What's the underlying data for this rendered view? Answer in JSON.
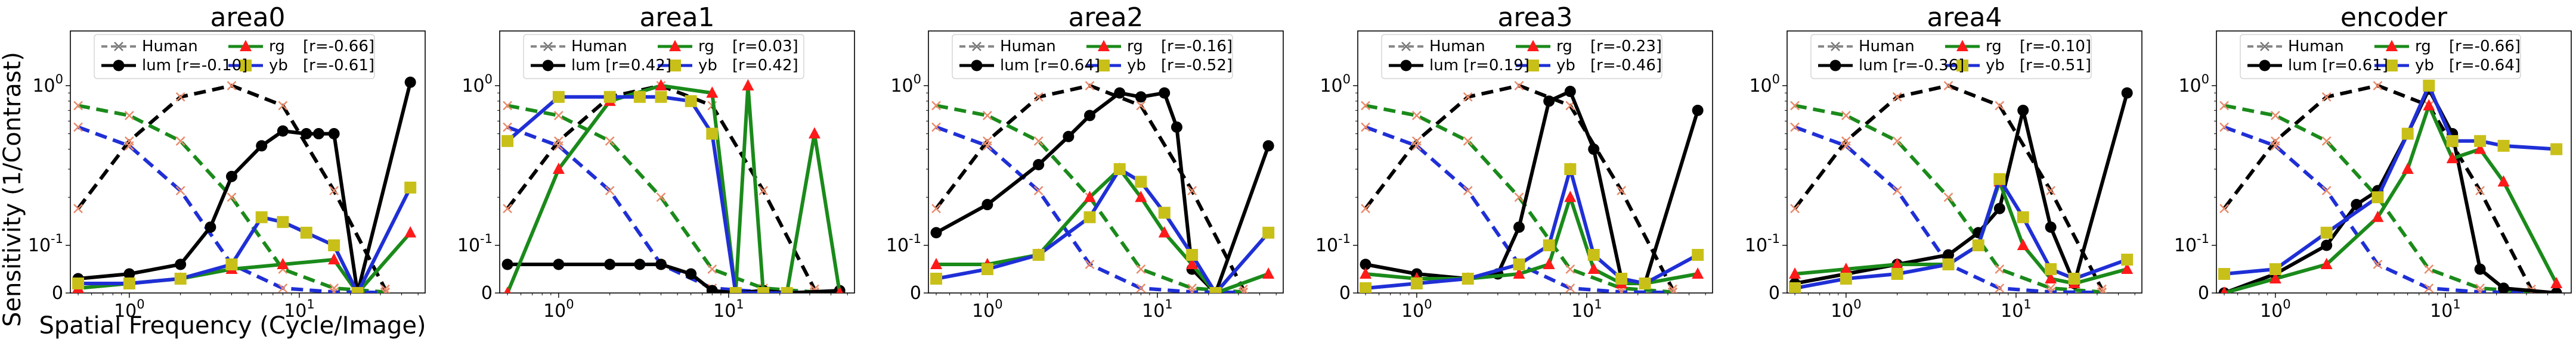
{
  "figure": {
    "ylabel": "Sensitivity (1/Contrast)",
    "xlabel": "Spatial Frequency (Cycle/Image)"
  },
  "style": {
    "lum": "#000000",
    "rg": "#1a8a1a",
    "yb": "#1f2fd6",
    "human": "#000000",
    "rg_marker": "#ff1a1a",
    "yb_marker": "#c8c018"
  },
  "chart_data": [
    {
      "type": "line",
      "title": "area0",
      "xscale": "log",
      "yscale": "symlog",
      "xlim": [
        0.45,
        55
      ],
      "ylim": [
        0,
        2.2
      ],
      "yticks": [
        "0",
        "10^-1",
        "10^0"
      ],
      "xticks": [
        "10^0",
        "10^1"
      ],
      "legend": {
        "position": "top",
        "entries": [
          "Human",
          "lum [r=-0.10]",
          "rg",
          "[r=-0.66]",
          "yb",
          "[r=-0.61]"
        ]
      },
      "human": {
        "lum": {
          "x": [
            0.5,
            1,
            2,
            4,
            8,
            16,
            32
          ],
          "y": [
            0.17,
            0.45,
            0.85,
            1.0,
            0.75,
            0.22,
            0.008
          ]
        },
        "rg": {
          "x": [
            0.5,
            1,
            2,
            4,
            8,
            16,
            32
          ],
          "y": [
            0.75,
            0.65,
            0.45,
            0.2,
            0.05,
            0.01,
            0.002
          ]
        },
        "yb": {
          "x": [
            0.5,
            1,
            2,
            4,
            8,
            16,
            32
          ],
          "y": [
            0.55,
            0.42,
            0.22,
            0.06,
            0.01,
            0.002,
            0.001
          ]
        }
      },
      "series": [
        {
          "name": "lum",
          "x": [
            0.5,
            1,
            2,
            3,
            4,
            6,
            8,
            11,
            13,
            16,
            22,
            45
          ],
          "y": [
            0.03,
            0.04,
            0.06,
            0.13,
            0.27,
            0.42,
            0.52,
            0.5,
            0.5,
            0.5,
            0.0,
            1.05
          ]
        },
        {
          "name": "rg",
          "x": [
            0.5,
            1,
            2,
            4,
            8,
            16,
            22,
            45
          ],
          "y": [
            0.01,
            0.02,
            0.03,
            0.05,
            0.06,
            0.07,
            0.0,
            0.12
          ]
        },
        {
          "name": "yb",
          "x": [
            0.5,
            1,
            2,
            4,
            6,
            8,
            11,
            16,
            22,
            45
          ],
          "y": [
            0.02,
            0.02,
            0.03,
            0.06,
            0.15,
            0.14,
            0.12,
            0.1,
            0.0,
            0.23
          ]
        }
      ]
    },
    {
      "type": "line",
      "title": "area1",
      "xscale": "log",
      "yscale": "symlog",
      "xlim": [
        0.45,
        55
      ],
      "ylim": [
        0,
        2.2
      ],
      "yticks": [
        "0",
        "10^-1",
        "10^0"
      ],
      "xticks": [
        "10^0",
        "10^1"
      ],
      "legend": {
        "position": "top",
        "entries": [
          "Human",
          "lum [r=0.42]",
          "rg",
          "[r=0.03]",
          "yb",
          "[r=0.42]"
        ]
      },
      "human": {
        "lum": {
          "x": [
            0.5,
            1,
            2,
            4,
            8,
            16,
            32
          ],
          "y": [
            0.17,
            0.45,
            0.85,
            1.0,
            0.75,
            0.22,
            0.008
          ]
        },
        "rg": {
          "x": [
            0.5,
            1,
            2,
            4,
            8,
            16,
            32
          ],
          "y": [
            0.75,
            0.65,
            0.45,
            0.2,
            0.05,
            0.01,
            0.002
          ]
        },
        "yb": {
          "x": [
            0.5,
            1,
            2,
            4,
            8,
            16,
            32
          ],
          "y": [
            0.55,
            0.42,
            0.22,
            0.06,
            0.01,
            0.002,
            0.001
          ]
        }
      },
      "series": [
        {
          "name": "lum",
          "x": [
            0.5,
            1,
            2,
            3,
            4,
            6,
            8,
            11,
            16,
            22,
            45
          ],
          "y": [
            0.06,
            0.06,
            0.06,
            0.06,
            0.06,
            0.04,
            0.005,
            0.0,
            0.005,
            0.0,
            0.005
          ]
        },
        {
          "name": "rg",
          "x": [
            0.5,
            1,
            2,
            4,
            8,
            11,
            13,
            16,
            22,
            32,
            45
          ],
          "y": [
            0.0,
            0.3,
            0.8,
            1.0,
            0.9,
            0.0,
            1.0,
            0.0,
            0.0,
            0.5,
            0.0
          ]
        },
        {
          "name": "yb",
          "x": [
            0.5,
            1,
            2,
            3,
            4,
            6,
            8,
            11,
            16,
            22
          ],
          "y": [
            0.45,
            0.85,
            0.85,
            0.85,
            0.85,
            0.8,
            0.5,
            0.0,
            0.0,
            0.0
          ]
        }
      ]
    },
    {
      "type": "line",
      "title": "area2",
      "xscale": "log",
      "yscale": "symlog",
      "xlim": [
        0.45,
        55
      ],
      "ylim": [
        0,
        2.2
      ],
      "yticks": [
        "0",
        "10^-1",
        "10^0"
      ],
      "xticks": [
        "10^0",
        "10^1"
      ],
      "legend": {
        "position": "top",
        "entries": [
          "Human",
          "lum [r=0.64]",
          "rg",
          "[r=-0.16]",
          "yb",
          "[r=-0.52]"
        ]
      },
      "human": {
        "lum": {
          "x": [
            0.5,
            1,
            2,
            4,
            8,
            16,
            32
          ],
          "y": [
            0.17,
            0.45,
            0.85,
            1.0,
            0.75,
            0.22,
            0.008
          ]
        },
        "rg": {
          "x": [
            0.5,
            1,
            2,
            4,
            8,
            16,
            32
          ],
          "y": [
            0.75,
            0.65,
            0.45,
            0.2,
            0.05,
            0.01,
            0.002
          ]
        },
        "yb": {
          "x": [
            0.5,
            1,
            2,
            4,
            8,
            16,
            32
          ],
          "y": [
            0.55,
            0.42,
            0.22,
            0.06,
            0.01,
            0.002,
            0.001
          ]
        }
      },
      "series": [
        {
          "name": "lum",
          "x": [
            0.5,
            1,
            2,
            3,
            4,
            6,
            8,
            11,
            13,
            16,
            22,
            45
          ],
          "y": [
            0.12,
            0.18,
            0.32,
            0.48,
            0.65,
            0.9,
            0.85,
            0.9,
            0.55,
            0.05,
            0.0,
            0.42
          ]
        },
        {
          "name": "rg",
          "x": [
            0.5,
            1,
            2,
            4,
            6,
            8,
            11,
            16,
            22,
            45
          ],
          "y": [
            0.06,
            0.06,
            0.08,
            0.2,
            0.3,
            0.2,
            0.12,
            0.06,
            0.0,
            0.04
          ]
        },
        {
          "name": "yb",
          "x": [
            0.5,
            1,
            2,
            4,
            6,
            8,
            11,
            16,
            22,
            45
          ],
          "y": [
            0.03,
            0.05,
            0.08,
            0.15,
            0.3,
            0.25,
            0.16,
            0.08,
            0.0,
            0.12
          ]
        }
      ]
    },
    {
      "type": "line",
      "title": "area3",
      "xscale": "log",
      "yscale": "symlog",
      "xlim": [
        0.45,
        55
      ],
      "ylim": [
        0,
        2.2
      ],
      "yticks": [
        "0",
        "10^-1",
        "10^0"
      ],
      "xticks": [
        "10^0",
        "10^1"
      ],
      "legend": {
        "position": "top",
        "entries": [
          "Human",
          "lum [r=0.19]",
          "rg",
          "[r=-0.23]",
          "yb",
          "[r=-0.46]"
        ]
      },
      "human": {
        "lum": {
          "x": [
            0.5,
            1,
            2,
            4,
            8,
            16,
            32
          ],
          "y": [
            0.17,
            0.45,
            0.85,
            1.0,
            0.75,
            0.22,
            0.008
          ]
        },
        "rg": {
          "x": [
            0.5,
            1,
            2,
            4,
            8,
            16,
            32
          ],
          "y": [
            0.75,
            0.65,
            0.45,
            0.2,
            0.05,
            0.01,
            0.002
          ]
        },
        "yb": {
          "x": [
            0.5,
            1,
            2,
            4,
            8,
            16,
            32
          ],
          "y": [
            0.55,
            0.42,
            0.22,
            0.06,
            0.01,
            0.002,
            0.001
          ]
        }
      },
      "series": [
        {
          "name": "lum",
          "x": [
            0.5,
            1,
            2,
            3,
            4,
            6,
            8,
            11,
            16,
            22,
            45
          ],
          "y": [
            0.06,
            0.04,
            0.03,
            0.04,
            0.13,
            0.8,
            0.92,
            0.4,
            0.03,
            0.02,
            0.7
          ]
        },
        {
          "name": "rg",
          "x": [
            0.5,
            1,
            2,
            4,
            6,
            8,
            11,
            16,
            22,
            45
          ],
          "y": [
            0.04,
            0.03,
            0.03,
            0.04,
            0.06,
            0.2,
            0.05,
            0.02,
            0.02,
            0.04
          ]
        },
        {
          "name": "yb",
          "x": [
            0.5,
            1,
            2,
            4,
            6,
            8,
            11,
            16,
            22,
            45
          ],
          "y": [
            0.01,
            0.02,
            0.03,
            0.06,
            0.1,
            0.3,
            0.08,
            0.03,
            0.02,
            0.08
          ]
        }
      ]
    },
    {
      "type": "line",
      "title": "area4",
      "xscale": "log",
      "yscale": "symlog",
      "xlim": [
        0.45,
        55
      ],
      "ylim": [
        0,
        2.2
      ],
      "yticks": [
        "0",
        "10^-1",
        "10^0"
      ],
      "xticks": [
        "10^0",
        "10^1"
      ],
      "legend": {
        "position": "top",
        "entries": [
          "Human",
          "lum [r=-0.36]",
          "rg",
          "[r=-0.10]",
          "yb",
          "[r=-0.51]"
        ]
      },
      "human": {
        "lum": {
          "x": [
            0.5,
            1,
            2,
            4,
            8,
            16,
            32
          ],
          "y": [
            0.17,
            0.45,
            0.85,
            1.0,
            0.75,
            0.22,
            0.008
          ]
        },
        "rg": {
          "x": [
            0.5,
            1,
            2,
            4,
            8,
            16,
            32
          ],
          "y": [
            0.75,
            0.65,
            0.45,
            0.2,
            0.05,
            0.01,
            0.002
          ]
        },
        "yb": {
          "x": [
            0.5,
            1,
            2,
            4,
            8,
            16,
            32
          ],
          "y": [
            0.55,
            0.42,
            0.22,
            0.06,
            0.01,
            0.002,
            0.001
          ]
        }
      },
      "series": [
        {
          "name": "lum",
          "x": [
            0.5,
            1,
            2,
            4,
            6,
            8,
            11,
            16,
            22,
            45
          ],
          "y": [
            0.02,
            0.04,
            0.06,
            0.08,
            0.12,
            0.17,
            0.7,
            0.13,
            0.02,
            0.9
          ]
        },
        {
          "name": "rg",
          "x": [
            0.5,
            1,
            2,
            4,
            6,
            8,
            11,
            16,
            22,
            45
          ],
          "y": [
            0.04,
            0.05,
            0.06,
            0.06,
            0.1,
            0.25,
            0.1,
            0.03,
            0.02,
            0.05
          ]
        },
        {
          "name": "yb",
          "x": [
            0.5,
            1,
            2,
            4,
            6,
            8,
            11,
            16,
            22,
            45
          ],
          "y": [
            0.01,
            0.03,
            0.04,
            0.06,
            0.1,
            0.26,
            0.15,
            0.05,
            0.03,
            0.07
          ]
        }
      ]
    },
    {
      "type": "line",
      "title": "encoder",
      "xscale": "log",
      "yscale": "symlog",
      "xlim": [
        0.45,
        55
      ],
      "ylim": [
        0,
        2.2
      ],
      "yticks": [
        "0",
        "10^-1",
        "10^0"
      ],
      "xticks": [
        "10^0",
        "10^1"
      ],
      "legend": {
        "position": "top",
        "entries": [
          "Human",
          "lum [r=0.61]",
          "rg",
          "[r=-0.66]",
          "yb",
          "[r=-0.64]"
        ]
      },
      "human": {
        "lum": {
          "x": [
            0.5,
            1,
            2,
            4,
            8,
            16,
            32
          ],
          "y": [
            0.17,
            0.45,
            0.85,
            1.0,
            0.75,
            0.22,
            0.008
          ]
        },
        "rg": {
          "x": [
            0.5,
            1,
            2,
            4,
            8,
            16,
            32
          ],
          "y": [
            0.75,
            0.65,
            0.45,
            0.2,
            0.05,
            0.01,
            0.002
          ]
        },
        "yb": {
          "x": [
            0.5,
            1,
            2,
            4,
            8,
            16,
            32
          ],
          "y": [
            0.55,
            0.42,
            0.22,
            0.06,
            0.01,
            0.002,
            0.001
          ]
        }
      },
      "series": [
        {
          "name": "lum",
          "x": [
            0.5,
            1,
            2,
            3,
            4,
            6,
            8,
            11,
            16,
            22,
            45
          ],
          "y": [
            0.0,
            0.04,
            0.1,
            0.18,
            0.22,
            0.5,
            0.95,
            0.5,
            0.05,
            0.01,
            0.0
          ]
        },
        {
          "name": "rg",
          "x": [
            0.5,
            1,
            2,
            4,
            6,
            8,
            11,
            16,
            22,
            45
          ],
          "y": [
            0.0,
            0.03,
            0.06,
            0.15,
            0.3,
            0.75,
            0.35,
            0.4,
            0.25,
            0.02
          ]
        },
        {
          "name": "yb",
          "x": [
            0.5,
            1,
            2,
            4,
            6,
            8,
            11,
            16,
            22,
            45
          ],
          "y": [
            0.04,
            0.05,
            0.12,
            0.2,
            0.5,
            1.0,
            0.45,
            0.45,
            0.42,
            0.4
          ]
        }
      ]
    }
  ]
}
